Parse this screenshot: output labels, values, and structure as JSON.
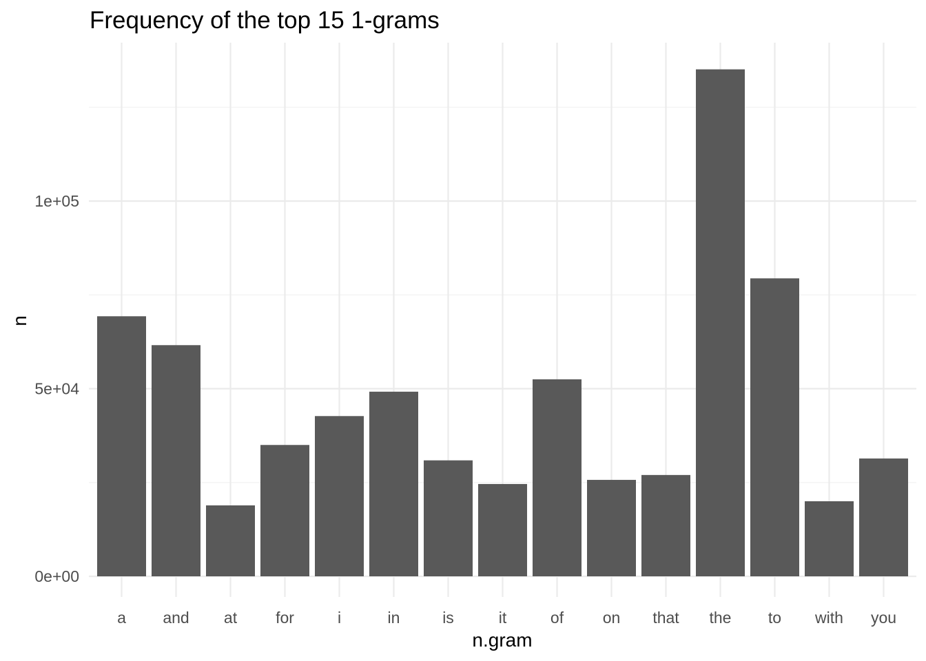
{
  "chart_data": {
    "type": "bar",
    "title": "Frequency of the top 15 1-grams",
    "xlabel": "n.gram",
    "ylabel": "n",
    "categories": [
      "a",
      "and",
      "at",
      "for",
      "i",
      "in",
      "is",
      "it",
      "of",
      "on",
      "that",
      "the",
      "to",
      "with",
      "you"
    ],
    "values": [
      69300,
      61600,
      18900,
      35000,
      42700,
      49200,
      30900,
      24600,
      52500,
      25700,
      27000,
      135100,
      79400,
      20000,
      31400
    ],
    "ylim": [
      0,
      142000
    ],
    "yticks": [
      0,
      50000,
      100000
    ],
    "ytick_labels": [
      "0e+00",
      "5e+04",
      "1e+05"
    ],
    "grid": true,
    "bar_color": "#595959",
    "theme": "minimal"
  }
}
